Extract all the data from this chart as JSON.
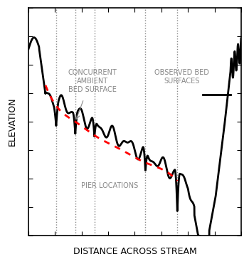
{
  "title": "",
  "xlabel": "DISTANCE ACROSS STREAM",
  "ylabel": "ELEVATION",
  "pier_locations": [
    0.13,
    0.22,
    0.31,
    0.55,
    0.7
  ],
  "ambient_line_color": "#FF0000",
  "bed_line_color": "#000000",
  "pier_line_color": "#888888",
  "background_color": "#ffffff",
  "text_color": "#888888",
  "label_concurrent": "CONCURRENT\nAMBIENT\nBED SURFACE",
  "label_observed": "OBSERVED BED\nSURFACES",
  "label_pier": "PIER LOCATIONS",
  "xlim": [
    0,
    1
  ],
  "ylim": [
    0,
    1
  ]
}
